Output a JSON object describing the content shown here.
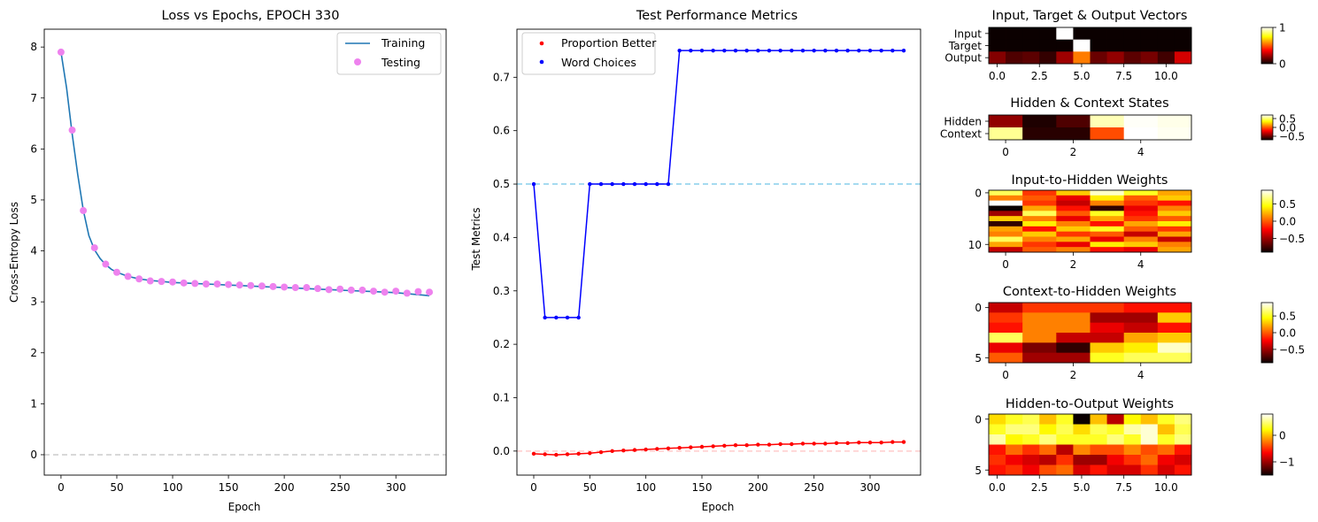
{
  "chart_data": [
    {
      "type": "line",
      "title": "Loss vs Epochs, EPOCH 330",
      "xlabel": "Epoch",
      "ylabel": "Cross-Entropy Loss",
      "xlim": [
        -15,
        345
      ],
      "ylim": [
        -0.4,
        8.35
      ],
      "xticks": [
        0,
        50,
        100,
        150,
        200,
        250,
        300
      ],
      "yticks": [
        0,
        1,
        2,
        3,
        4,
        5,
        6,
        7,
        8
      ],
      "hline": {
        "y": 0,
        "color": "#cccccc",
        "style": "dashed"
      },
      "legend": {
        "position": "top-right",
        "entries": [
          "Training",
          "Testing"
        ]
      },
      "series": [
        {
          "name": "Training",
          "kind": "line",
          "color": "#1f77b4",
          "x": [
            0,
            5,
            10,
            15,
            20,
            25,
            30,
            35,
            40,
            45,
            50,
            60,
            70,
            80,
            90,
            100,
            110,
            120,
            130,
            140,
            150,
            160,
            170,
            180,
            190,
            200,
            210,
            220,
            230,
            240,
            250,
            260,
            270,
            280,
            290,
            300,
            310,
            320,
            330
          ],
          "y": [
            7.9,
            7.2,
            6.3,
            5.5,
            4.8,
            4.3,
            4.02,
            3.85,
            3.73,
            3.64,
            3.58,
            3.5,
            3.45,
            3.42,
            3.4,
            3.38,
            3.37,
            3.36,
            3.35,
            3.34,
            3.33,
            3.32,
            3.31,
            3.3,
            3.29,
            3.28,
            3.27,
            3.26,
            3.25,
            3.24,
            3.23,
            3.22,
            3.21,
            3.2,
            3.19,
            3.18,
            3.16,
            3.14,
            3.12
          ]
        },
        {
          "name": "Testing",
          "kind": "scatter",
          "color": "#ee82ee",
          "x": [
            0,
            10,
            20,
            30,
            40,
            50,
            60,
            70,
            80,
            90,
            100,
            110,
            120,
            130,
            140,
            150,
            160,
            170,
            180,
            190,
            200,
            210,
            220,
            230,
            240,
            250,
            260,
            270,
            280,
            290,
            300,
            310,
            320,
            330
          ],
          "y": [
            7.9,
            6.37,
            4.79,
            4.06,
            3.74,
            3.58,
            3.5,
            3.45,
            3.41,
            3.4,
            3.39,
            3.37,
            3.36,
            3.35,
            3.35,
            3.34,
            3.33,
            3.32,
            3.31,
            3.3,
            3.29,
            3.28,
            3.28,
            3.26,
            3.24,
            3.25,
            3.23,
            3.23,
            3.21,
            3.19,
            3.21,
            3.17,
            3.2,
            3.19
          ]
        }
      ]
    },
    {
      "type": "line",
      "title": "Test Performance Metrics",
      "xlabel": "Epoch",
      "ylabel": "Test Metrics",
      "xlim": [
        -15,
        345
      ],
      "ylim": [
        -0.045,
        0.79
      ],
      "xticks": [
        0,
        50,
        100,
        150,
        200,
        250,
        300
      ],
      "yticks": [
        0.0,
        0.1,
        0.2,
        0.3,
        0.4,
        0.5,
        0.6,
        0.7
      ],
      "ytick_labels": [
        "0.0",
        "0.1",
        "0.2",
        "0.3",
        "0.4",
        "0.5",
        "0.6",
        "0.7"
      ],
      "hlines": [
        {
          "y": 0.5,
          "color": "#87ceeb",
          "style": "dashed"
        },
        {
          "y": 0.0,
          "color": "#ffcccc",
          "style": "dashed"
        }
      ],
      "legend": {
        "position": "top-left",
        "entries": [
          "Proportion Better",
          "Word Choices"
        ]
      },
      "series": [
        {
          "name": "Proportion Better",
          "color": "#ff0000",
          "x": [
            0,
            10,
            20,
            30,
            40,
            50,
            60,
            70,
            80,
            90,
            100,
            110,
            120,
            130,
            140,
            150,
            160,
            170,
            180,
            190,
            200,
            210,
            220,
            230,
            240,
            250,
            260,
            270,
            280,
            290,
            300,
            310,
            320,
            330
          ],
          "y": [
            -0.005,
            -0.006,
            -0.007,
            -0.006,
            -0.005,
            -0.004,
            -0.002,
            0.0,
            0.001,
            0.002,
            0.003,
            0.004,
            0.005,
            0.006,
            0.007,
            0.008,
            0.009,
            0.01,
            0.011,
            0.011,
            0.012,
            0.012,
            0.013,
            0.013,
            0.014,
            0.014,
            0.014,
            0.015,
            0.015,
            0.016,
            0.016,
            0.016,
            0.017,
            0.017
          ]
        },
        {
          "name": "Word Choices",
          "color": "#0000ff",
          "x": [
            0,
            10,
            20,
            30,
            40,
            50,
            60,
            70,
            80,
            90,
            100,
            110,
            120,
            130,
            140,
            150,
            160,
            170,
            180,
            190,
            200,
            210,
            220,
            230,
            240,
            250,
            260,
            270,
            280,
            290,
            300,
            310,
            320,
            330
          ],
          "y": [
            0.5,
            0.25,
            0.25,
            0.25,
            0.25,
            0.5,
            0.5,
            0.5,
            0.5,
            0.5,
            0.5,
            0.5,
            0.5,
            0.75,
            0.75,
            0.75,
            0.75,
            0.75,
            0.75,
            0.75,
            0.75,
            0.75,
            0.75,
            0.75,
            0.75,
            0.75,
            0.75,
            0.75,
            0.75,
            0.75,
            0.75,
            0.75,
            0.75,
            0.75
          ]
        }
      ]
    },
    {
      "type": "heatmap",
      "title": "Input, Target & Output Vectors",
      "row_labels": [
        "Input",
        "Target",
        "Output"
      ],
      "xticks": [
        0,
        2.5,
        5.0,
        7.5,
        10.0
      ],
      "xtick_labels": [
        "0.0",
        "2.5",
        "5.0",
        "7.5",
        "10.0"
      ],
      "vmin": 0,
      "vmax": 1,
      "colorbar_ticks": [
        0,
        1
      ],
      "colorbar_labels": [
        "0",
        "1"
      ],
      "values": [
        [
          0,
          0,
          0,
          0,
          1,
          0,
          0,
          0,
          0,
          0,
          0,
          0
        ],
        [
          0,
          0,
          0,
          0,
          0,
          1,
          0,
          0,
          0,
          0,
          0,
          0
        ],
        [
          0.18,
          0.1,
          0.12,
          0.06,
          0.22,
          0.55,
          0.14,
          0.2,
          0.12,
          0.16,
          0.08,
          0.3
        ]
      ]
    },
    {
      "type": "heatmap",
      "title": "Hidden & Context States",
      "row_labels": [
        "Hidden",
        "Context"
      ],
      "xticks": [
        0,
        2,
        4
      ],
      "xtick_labels": [
        "0",
        "2",
        "4"
      ],
      "vmin": -0.7,
      "vmax": 0.7,
      "colorbar_ticks": [
        0.5,
        0.0,
        -0.5
      ],
      "colorbar_labels": [
        "0.5",
        "0.0",
        "−0.5"
      ],
      "values": [
        [
          -0.42,
          -0.66,
          -0.56,
          0.6,
          0.69,
          0.67
        ],
        [
          0.55,
          -0.64,
          -0.64,
          -0.03,
          0.7,
          0.68
        ]
      ]
    },
    {
      "type": "heatmap",
      "title": "Input-to-Hidden Weights",
      "yticks": [
        0,
        10
      ],
      "ytick_labels": [
        "0",
        "10"
      ],
      "xticks": [
        0,
        2,
        4
      ],
      "xtick_labels": [
        "0",
        "2",
        "4"
      ],
      "vmin": -0.9,
      "vmax": 0.9,
      "colorbar_ticks": [
        0.5,
        0.0,
        -0.5
      ],
      "colorbar_labels": [
        "0.5",
        "0.0",
        "−0.5"
      ],
      "values": [
        [
          0.6,
          -0.1,
          0.3,
          0.8,
          0.5,
          0.2
        ],
        [
          0.1,
          0.0,
          -0.3,
          0.4,
          0.0,
          0.3
        ],
        [
          0.9,
          -0.1,
          -0.4,
          0.1,
          -0.1,
          -0.2
        ],
        [
          -0.9,
          0.2,
          -0.2,
          -0.8,
          -0.3,
          0.1
        ],
        [
          -0.5,
          0.6,
          0.0,
          0.5,
          -0.2,
          0.3
        ],
        [
          0.3,
          0.1,
          -0.3,
          0.2,
          -0.1,
          0.0
        ],
        [
          -0.8,
          0.4,
          0.1,
          -0.2,
          0.2,
          0.4
        ],
        [
          0.2,
          -0.2,
          0.3,
          0.5,
          0.0,
          -0.1
        ],
        [
          0.1,
          0.3,
          -0.1,
          0.0,
          -0.4,
          0.2
        ],
        [
          0.6,
          0.1,
          0.2,
          -0.3,
          0.1,
          -0.4
        ],
        [
          0.2,
          -0.1,
          -0.3,
          0.4,
          0.3,
          0.1
        ],
        [
          -0.4,
          0.0,
          0.1,
          -0.2,
          -0.3,
          0.2
        ]
      ]
    },
    {
      "type": "heatmap",
      "title": "Context-to-Hidden Weights",
      "yticks": [
        0,
        5
      ],
      "ytick_labels": [
        "0",
        "5"
      ],
      "xticks": [
        0,
        2,
        4
      ],
      "xtick_labels": [
        "0",
        "2",
        "4"
      ],
      "vmin": -0.9,
      "vmax": 0.9,
      "colorbar_ticks": [
        0.5,
        0.0,
        -0.5
      ],
      "colorbar_labels": [
        "0.5",
        "0.0",
        "−0.5"
      ],
      "values": [
        [
          -0.4,
          -0.1,
          -0.1,
          -0.1,
          -0.2,
          -0.2
        ],
        [
          -0.1,
          0.1,
          0.1,
          -0.5,
          -0.5,
          0.3
        ],
        [
          -0.2,
          0.1,
          0.1,
          -0.3,
          -0.4,
          -0.2
        ],
        [
          0.6,
          0.1,
          -0.4,
          -0.4,
          0.2,
          0.3
        ],
        [
          -0.3,
          -0.6,
          -0.8,
          0.3,
          0.4,
          0.8
        ],
        [
          0.0,
          -0.5,
          -0.5,
          0.5,
          0.6,
          0.6
        ]
      ]
    },
    {
      "type": "heatmap",
      "title": "Hidden-to-Output Weights",
      "yticks": [
        0,
        5
      ],
      "ytick_labels": [
        "0",
        "5"
      ],
      "xticks": [
        0,
        2.5,
        5.0,
        7.5,
        10.0
      ],
      "xtick_labels": [
        "0.0",
        "2.5",
        "5.0",
        "7.5",
        "10.0"
      ],
      "vmin": -1.5,
      "vmax": 0.8,
      "colorbar_ticks": [
        0,
        -1
      ],
      "colorbar_labels": [
        "0",
        "−1"
      ],
      "values": [
        [
          0.1,
          0.3,
          0.4,
          0.0,
          0.3,
          -1.5,
          0.0,
          -0.9,
          0.2,
          0.0,
          0.3,
          0.5
        ],
        [
          0.3,
          0.5,
          0.5,
          0.2,
          0.4,
          0.1,
          0.4,
          0.3,
          0.6,
          0.7,
          0.0,
          0.4
        ],
        [
          0.6,
          0.2,
          0.3,
          0.5,
          0.3,
          0.3,
          0.3,
          0.5,
          0.3,
          0.7,
          0.3,
          0.5
        ],
        [
          -0.6,
          -0.3,
          -0.5,
          -0.3,
          -0.9,
          -0.2,
          -0.4,
          -0.4,
          -0.2,
          -0.4,
          -0.3,
          -0.6
        ],
        [
          -0.5,
          -0.7,
          -0.8,
          -0.9,
          -0.5,
          -1.0,
          -1.0,
          -0.7,
          -0.5,
          -0.3,
          -0.7,
          -0.8
        ],
        [
          -0.6,
          -0.5,
          -0.7,
          -0.4,
          -0.3,
          -0.8,
          -0.6,
          -0.8,
          -0.8,
          -0.5,
          -0.8,
          -0.6
        ]
      ]
    }
  ]
}
